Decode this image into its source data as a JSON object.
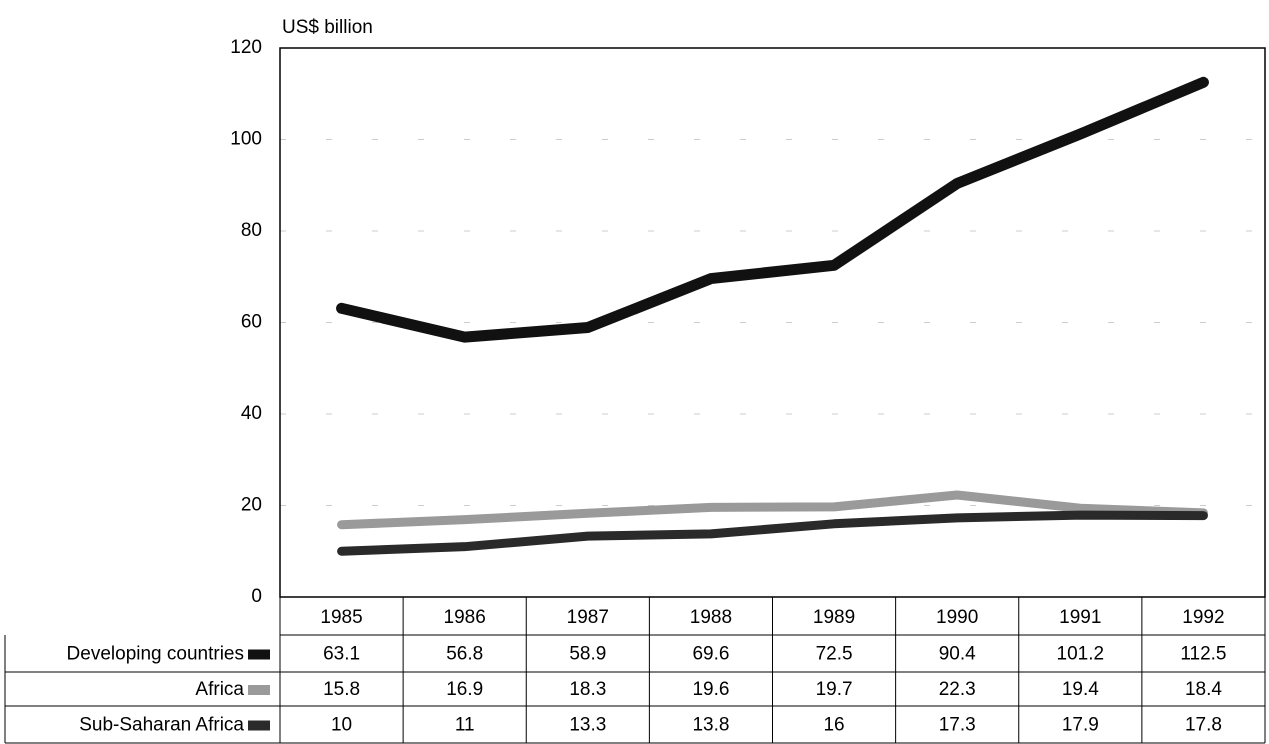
{
  "chart_data": {
    "type": "line",
    "y_axis_label": "US$ billion",
    "categories": [
      "1985",
      "1986",
      "1987",
      "1988",
      "1989",
      "1990",
      "1991",
      "1992"
    ],
    "series": [
      {
        "name": "Developing countries",
        "color": "#111111",
        "values": [
          63.1,
          56.8,
          58.9,
          69.6,
          72.5,
          90.4,
          101.2,
          112.5
        ]
      },
      {
        "name": "Africa",
        "color": "#9a9a9a",
        "values": [
          15.8,
          16.9,
          18.3,
          19.6,
          19.7,
          22.3,
          19.4,
          18.4
        ]
      },
      {
        "name": "Sub-Saharan Africa",
        "color": "#2a2a2a",
        "values": [
          10,
          11,
          13.3,
          13.8,
          16,
          17.3,
          17.9,
          17.8
        ]
      }
    ],
    "ylim": [
      0,
      120
    ],
    "yticks": [
      0,
      20,
      40,
      60,
      80,
      100,
      120
    ],
    "grid": true
  }
}
